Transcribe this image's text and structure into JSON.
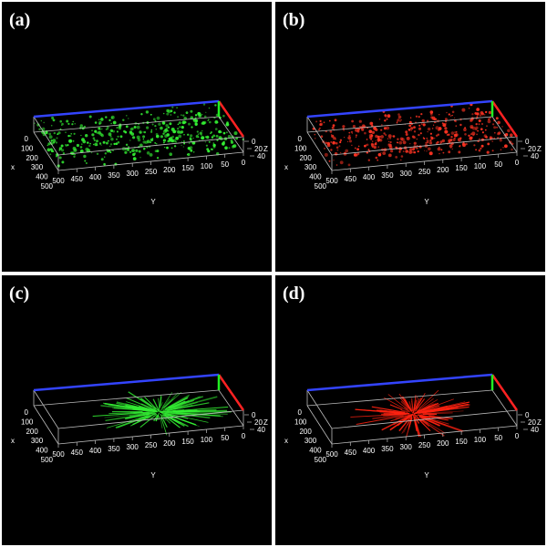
{
  "panels": [
    {
      "label": "(a)",
      "color": "#33ee33",
      "pattern": "dots"
    },
    {
      "label": "(b)",
      "color": "#ff3322",
      "pattern": "dots"
    },
    {
      "label": "(c)",
      "color": "#33ee33",
      "pattern": "lines"
    },
    {
      "label": "(d)",
      "color": "#ff2211",
      "pattern": "lines"
    }
  ],
  "axes": {
    "x_label": "x",
    "y_label": "Y",
    "z_label": "Z",
    "x_ticks": [
      0,
      100,
      200,
      300,
      400,
      500
    ],
    "y_ticks": [
      500,
      450,
      400,
      350,
      300,
      250,
      200,
      150,
      100,
      50,
      0
    ],
    "z_ticks": [
      0,
      20,
      40
    ]
  }
}
